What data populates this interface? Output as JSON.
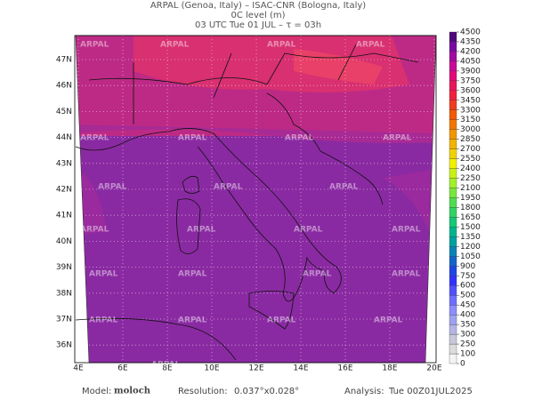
{
  "header": {
    "line1": "ARPAL (Genoa, Italy)  –  ISAC-CNR (Bologna, Italy)",
    "line2": "0C level (m)",
    "line3": "03 UTC Tue 01 JUL  –  τ = 03h"
  },
  "map": {
    "lat_labels": [
      "47N",
      "46N",
      "45N",
      "44N",
      "43N",
      "42N",
      "41N",
      "40N",
      "39N",
      "38N",
      "37N",
      "36N"
    ],
    "lon_labels": [
      "4E",
      "6E",
      "8E",
      "10E",
      "12E",
      "14E",
      "16E",
      "18E",
      "20E"
    ],
    "watermark": "ARPAL"
  },
  "colorbar": {
    "levels": [
      0,
      100,
      250,
      300,
      350,
      400,
      450,
      500,
      600,
      750,
      900,
      1050,
      1200,
      1350,
      1500,
      1650,
      1800,
      1950,
      2100,
      2250,
      2400,
      2550,
      2700,
      2850,
      3000,
      3150,
      3300,
      3450,
      3600,
      3750,
      3900,
      4050,
      4200,
      4350,
      4500
    ],
    "colors": [
      "#f4f4f4",
      "#dcdcdc",
      "#c8c8d8",
      "#b4b4e6",
      "#a0a0f0",
      "#8c8cff",
      "#6e6eff",
      "#5050ff",
      "#3232ff",
      "#1e46e6",
      "#1464c8",
      "#0a82b4",
      "#00a0a0",
      "#00b48c",
      "#14c878",
      "#32d264",
      "#50dc50",
      "#78e63c",
      "#a0f028",
      "#c8f014",
      "#f0f000",
      "#f0d200",
      "#f0b400",
      "#f09600",
      "#f07800",
      "#f05a00",
      "#f03c1e",
      "#f01e3c",
      "#e8145a",
      "#e00a78",
      "#c80a96",
      "#a00aa0",
      "#780aa0",
      "#500a78"
    ]
  },
  "footer": {
    "model_label": "Model:",
    "model": "moloch",
    "resolution_label": "Resolution:",
    "resolution": "0.037°x0.028°",
    "analysis_label": "Analysis:",
    "analysis": "Tue 00Z01JUL2025"
  }
}
